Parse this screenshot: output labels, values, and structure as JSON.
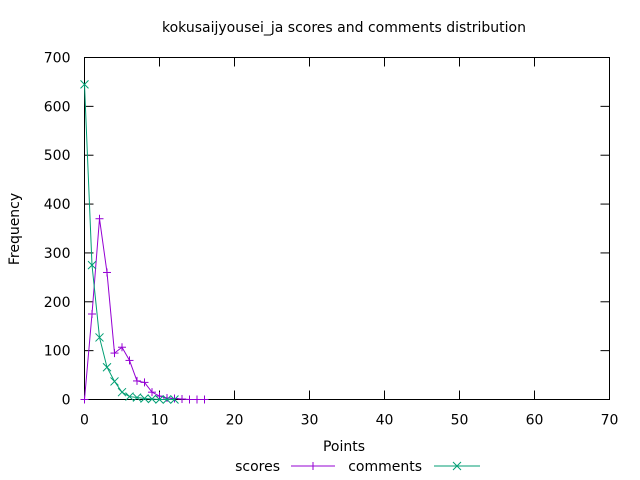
{
  "chart_data": {
    "type": "line",
    "title": "kokusaijyousei_ja scores and comments distribution",
    "xlabel": "Points",
    "ylabel": "Frequency",
    "xlim": [
      0,
      70
    ],
    "ylim": [
      0,
      700
    ],
    "xticks": [
      0,
      10,
      20,
      30,
      40,
      50,
      60,
      70
    ],
    "yticks": [
      0,
      100,
      200,
      300,
      400,
      500,
      600,
      700
    ],
    "grid": false,
    "legend_position": "bottom-center",
    "series": [
      {
        "name": "scores",
        "color": "#9400d3",
        "marker": "plus",
        "x": [
          0,
          1,
          2,
          3,
          4,
          5,
          6,
          7,
          8,
          9,
          10,
          11,
          12,
          13,
          14,
          15,
          16
        ],
        "y": [
          0,
          175,
          370,
          260,
          95,
          107,
          80,
          38,
          35,
          15,
          7,
          3,
          2,
          1,
          0,
          0,
          0
        ]
      },
      {
        "name": "comments",
        "color": "#009e73",
        "marker": "cross",
        "x": [
          0,
          1,
          2,
          3,
          4,
          5,
          6,
          7,
          8,
          9,
          10,
          11,
          12
        ],
        "y": [
          645,
          275,
          127,
          66,
          37,
          15,
          6,
          4,
          2,
          1,
          0,
          0,
          0
        ]
      }
    ]
  }
}
